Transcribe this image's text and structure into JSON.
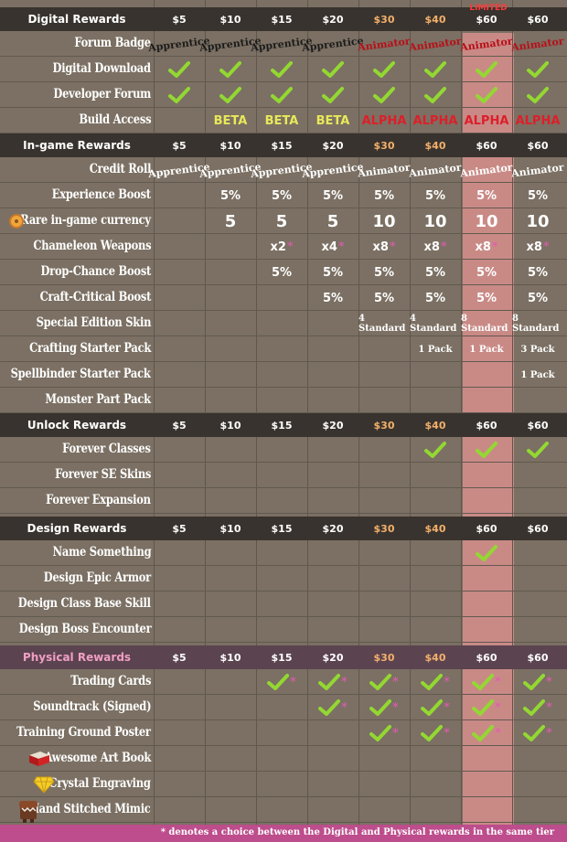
{
  "tiers": [
    "$5",
    "$10",
    "$15",
    "$20",
    "$30",
    "$40",
    "$60",
    "$60"
  ],
  "tier_colors": [
    "white",
    "white",
    "white",
    "white",
    "orange",
    "orange",
    "white",
    "white"
  ],
  "limited_label": "LIMITED",
  "footer": "* denotes a choice between the Digital and Physical rewards in the same tier",
  "sections": [
    {
      "title": "Digital Rewards",
      "rows": [
        {
          "label": "Forum Badge",
          "cells": [
            "tag:dark:Apprentice",
            "tag:dark:Apprentice",
            "tag:dark:Apprentice",
            "tag:dark:Apprentice",
            "tag:red:Animator",
            "tag:red:Animator",
            "tag:red:Animator",
            "tag:red:Animator"
          ]
        },
        {
          "label": "Digital Download",
          "cells": [
            "check",
            "check",
            "check",
            "check",
            "check",
            "check",
            "check",
            "check"
          ]
        },
        {
          "label": "Developer Forum",
          "cells": [
            "check",
            "check",
            "check",
            "check",
            "check",
            "check",
            "check",
            "check"
          ]
        },
        {
          "label": "Build Access",
          "cells": [
            "",
            "beta:BETA",
            "beta:BETA",
            "beta:BETA",
            "alpha:ALPHA",
            "alpha:ALPHA",
            "alpha:ALPHA",
            "alpha:ALPHA"
          ]
        }
      ]
    },
    {
      "title": "In-game Rewards",
      "rows": [
        {
          "label": "Credit Roll",
          "cells": [
            "tag:white:Apprentice",
            "tag:white:Apprentice",
            "tag:white:Apprentice",
            "tag:white:Apprentice",
            "tag:white:Animator",
            "tag:white:Animator",
            "tag:white:Animator",
            "tag:white:Animator"
          ]
        },
        {
          "label": "Experience Boost",
          "cells": [
            "",
            "pct:5%",
            "pct:5%",
            "pct:5%",
            "pct:5%",
            "pct:5%",
            "pct:5%",
            "pct:5%"
          ]
        },
        {
          "label": "Rare in-game currency",
          "icon": "coin-icon",
          "cells": [
            "",
            "big:5",
            "big:5",
            "big:5",
            "big:10",
            "big:10",
            "big:10",
            "big:10"
          ]
        },
        {
          "label": "Chameleon Weapons",
          "cells": [
            "",
            "",
            "pcta:x2",
            "pcta:x4",
            "pcta:x8",
            "pcta:x8",
            "pcta:x8",
            "pcta:x8"
          ]
        },
        {
          "label": "Drop-Chance Boost",
          "cells": [
            "",
            "",
            "pct:5%",
            "pct:5%",
            "pct:5%",
            "pct:5%",
            "pct:5%",
            "pct:5%"
          ]
        },
        {
          "label": "Craft-Critical Boost",
          "cells": [
            "",
            "",
            "",
            "pct:5%",
            "pct:5%",
            "pct:5%",
            "pct:5%",
            "pct:5%"
          ]
        },
        {
          "label": "Special Edition Skin",
          "cells": [
            "",
            "",
            "",
            "",
            "small:4 Standard",
            "small:4 Standard",
            "small:8 Standard",
            "small:8 Standard"
          ]
        },
        {
          "label": "Crafting Starter Pack",
          "cells": [
            "",
            "",
            "",
            "",
            "",
            "small:1 Pack",
            "small:1 Pack",
            "small:3 Pack"
          ]
        },
        {
          "label": "Spellbinder Starter Pack",
          "cells": [
            "",
            "",
            "",
            "",
            "",
            "",
            "",
            "small:1 Pack"
          ]
        },
        {
          "label": "Monster Part Pack",
          "cells": [
            "",
            "",
            "",
            "",
            "",
            "",
            "",
            ""
          ]
        }
      ]
    },
    {
      "title": "Unlock Rewards",
      "rows": [
        {
          "label": "Forever Classes",
          "cells": [
            "",
            "",
            "",
            "",
            "",
            "check",
            "check",
            "check"
          ]
        },
        {
          "label": "Forever SE Skins",
          "cells": [
            "",
            "",
            "",
            "",
            "",
            "",
            "",
            ""
          ]
        },
        {
          "label": "Forever Expansion",
          "cells": [
            "",
            "",
            "",
            "",
            "",
            "",
            "",
            ""
          ]
        }
      ]
    },
    {
      "title": "Design Rewards",
      "rows": [
        {
          "label": "Name Something",
          "cells": [
            "",
            "",
            "",
            "",
            "",
            "",
            "check",
            ""
          ]
        },
        {
          "label": "Design Epic Armor",
          "cells": [
            "",
            "",
            "",
            "",
            "",
            "",
            "",
            ""
          ]
        },
        {
          "label": "Design Class Base Skill",
          "cells": [
            "",
            "",
            "",
            "",
            "",
            "",
            "",
            ""
          ]
        },
        {
          "label": "Design Boss Encounter",
          "cells": [
            "",
            "",
            "",
            "",
            "",
            "",
            "",
            ""
          ]
        }
      ]
    },
    {
      "title": "Physical Rewards",
      "physical": true,
      "rows": [
        {
          "label": "Trading Cards",
          "cells": [
            "",
            "",
            "checka",
            "checka",
            "checka",
            "checka",
            "checka",
            "checka"
          ]
        },
        {
          "label": "Soundtrack (Signed)",
          "cells": [
            "",
            "",
            "",
            "checka",
            "checka",
            "checka",
            "checka",
            "checka"
          ]
        },
        {
          "label": "Training Ground Poster",
          "cells": [
            "",
            "",
            "",
            "",
            "checka",
            "checka",
            "checka",
            "checka"
          ]
        },
        {
          "label": "Awesome Art Book",
          "icon": "book-icon",
          "cells": [
            "",
            "",
            "",
            "",
            "",
            "",
            "",
            ""
          ]
        },
        {
          "label": "Crystal Engraving",
          "icon": "gem-icon",
          "cells": [
            "",
            "",
            "",
            "",
            "",
            "",
            "",
            ""
          ]
        },
        {
          "label": "Hand Stitched Mimic",
          "icon": "mimic-icon",
          "cells": [
            "",
            "",
            "",
            "",
            "",
            "",
            "",
            ""
          ]
        }
      ]
    }
  ]
}
